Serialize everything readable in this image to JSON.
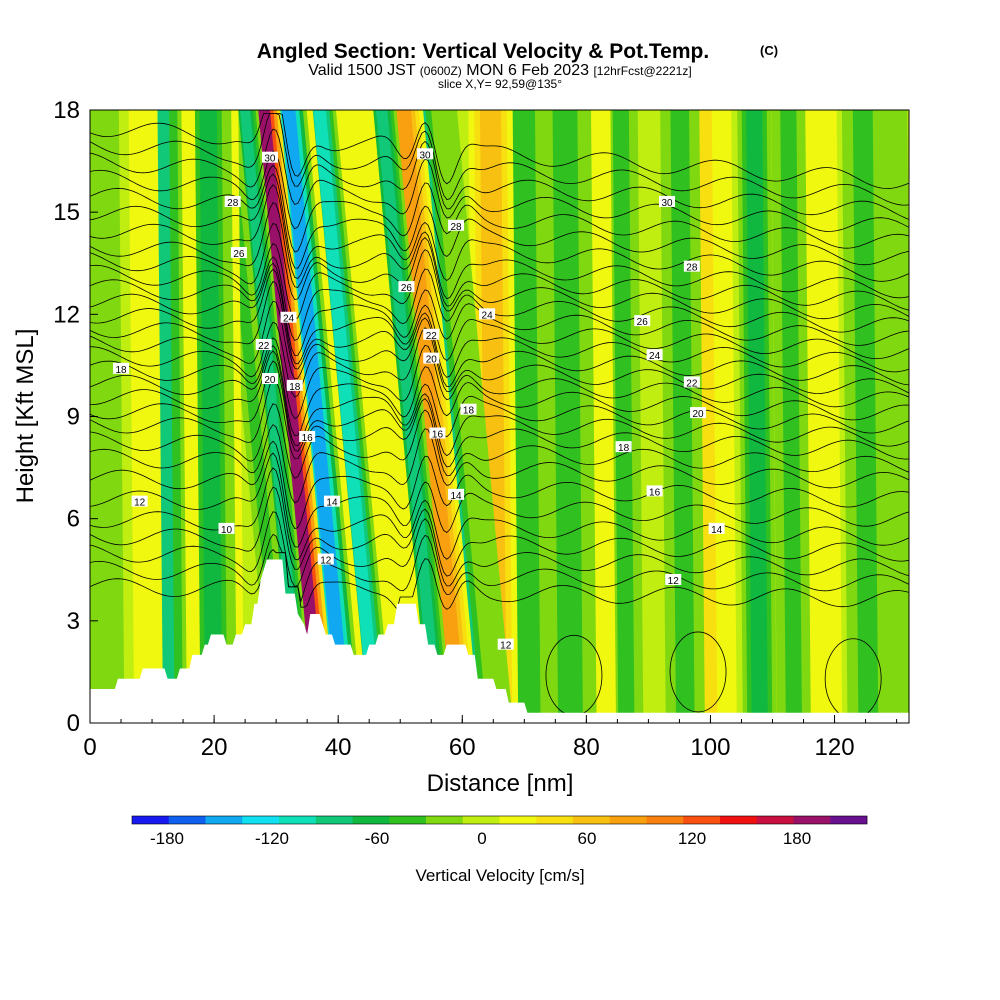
{
  "chart_data": {
    "type": "heatmap",
    "title": "Angled Section: Vertical Velocity & Pot.Temp.",
    "title_tag": "(C)",
    "subtitle_main_a": "Valid 1500 JST",
    "subtitle_tz": "(0600Z)",
    "subtitle_main_b": "MON 6 Feb 2023",
    "subtitle_fcst": "[12hrFcst@2221z]",
    "subtitle_slice": "slice X,Y= 92,59@135°",
    "xlabel": "Distance [nm]",
    "ylabel": "Height [Kft MSL]",
    "xlim": [
      0,
      132
    ],
    "ylim": [
      0,
      18
    ],
    "x_ticks": [
      "0",
      "20",
      "40",
      "60",
      "80",
      "100",
      "120"
    ],
    "y_ticks": [
      "0",
      "3",
      "6",
      "9",
      "12",
      "15",
      "18"
    ],
    "colorbar": {
      "label": "Vertical Velocity [cm/s]",
      "tick_labels": [
        "-180",
        "-120",
        "-60",
        "0",
        "60",
        "120",
        "180"
      ],
      "range": [
        -200,
        220
      ],
      "colors": [
        "#1818f0",
        "#1060f0",
        "#10a8f0",
        "#10e0f0",
        "#10e0b8",
        "#10c878",
        "#10b840",
        "#30c020",
        "#80d810",
        "#c0ee10",
        "#f0f810",
        "#f8e010",
        "#f8c010",
        "#f8a010",
        "#f88010",
        "#f85010",
        "#f01010",
        "#c81040",
        "#981068",
        "#681090"
      ]
    },
    "velocity_features": [
      {
        "x": 2,
        "w": 2,
        "v": -25
      },
      {
        "x": 9,
        "w": 1.5,
        "v": 25
      },
      {
        "x": 12,
        "w": 1.2,
        "v": -75
      },
      {
        "x": 15.5,
        "w": 1.2,
        "v": 25
      },
      {
        "x": 19.5,
        "w": 1.4,
        "v": -60
      },
      {
        "x": 22.5,
        "w": 1.2,
        "v": 20
      },
      {
        "x": 26.5,
        "w": 0.9,
        "v": -45
      },
      {
        "x": 29.5,
        "w": 0.8,
        "v": -95
      },
      {
        "x": 32.5,
        "w": 1.0,
        "v": 185
      },
      {
        "x": 36.5,
        "w": 1.1,
        "v": -140
      },
      {
        "x": 38.5,
        "w": 0.9,
        "v": 30
      },
      {
        "x": 41.5,
        "w": 1.0,
        "v": -115
      },
      {
        "x": 47.0,
        "w": 1.5,
        "v": 30
      },
      {
        "x": 51.5,
        "w": 0.9,
        "v": -80
      },
      {
        "x": 55.0,
        "w": 1.2,
        "v": 75
      },
      {
        "x": 57.8,
        "w": 0.8,
        "v": -75
      },
      {
        "x": 60.5,
        "w": 1.5,
        "v": -30
      },
      {
        "x": 65.0,
        "w": 1.7,
        "v": 55
      },
      {
        "x": 70.0,
        "w": 1.4,
        "v": -50
      },
      {
        "x": 77.0,
        "w": 2.0,
        "v": -40
      },
      {
        "x": 82.0,
        "w": 1.5,
        "v": 20
      },
      {
        "x": 86.0,
        "w": 1.3,
        "v": -45
      },
      {
        "x": 95.5,
        "w": 1.5,
        "v": -45
      },
      {
        "x": 98.5,
        "w": 1.4,
        "v": 45
      },
      {
        "x": 102.0,
        "w": 1.8,
        "v": 15
      },
      {
        "x": 107.5,
        "w": 1.3,
        "v": -55
      },
      {
        "x": 113.0,
        "w": 1.3,
        "v": -45
      },
      {
        "x": 118.0,
        "w": 1.8,
        "v": 20
      },
      {
        "x": 125.0,
        "w": 1.6,
        "v": -35
      },
      {
        "x": 130.0,
        "w": 1.4,
        "v": -25
      }
    ],
    "terrain": [
      [
        0,
        1.0
      ],
      [
        4,
        1.0
      ],
      [
        4.5,
        1.3
      ],
      [
        8,
        1.3
      ],
      [
        8.5,
        1.6
      ],
      [
        12,
        1.6
      ],
      [
        12.5,
        1.3
      ],
      [
        14,
        1.3
      ],
      [
        14.5,
        1.6
      ],
      [
        16,
        1.6
      ],
      [
        16.5,
        2.0
      ],
      [
        18,
        2.0
      ],
      [
        18.5,
        2.3
      ],
      [
        19,
        2.3
      ],
      [
        19.5,
        2.6
      ],
      [
        21.5,
        2.6
      ],
      [
        22,
        2.3
      ],
      [
        23,
        2.3
      ],
      [
        23.5,
        2.6
      ],
      [
        24.5,
        2.6
      ],
      [
        25,
        2.9
      ],
      [
        26,
        2.9
      ],
      [
        26.5,
        3.5
      ],
      [
        27,
        3.5
      ],
      [
        27.5,
        4.2
      ],
      [
        28.5,
        4.8
      ],
      [
        31,
        4.8
      ],
      [
        31.5,
        3.8
      ],
      [
        33,
        3.8
      ],
      [
        33.5,
        3.2
      ],
      [
        34.5,
        2.9
      ],
      [
        35,
        2.6
      ],
      [
        35.5,
        3.2
      ],
      [
        37,
        3.2
      ],
      [
        37.5,
        2.9
      ],
      [
        38,
        2.6
      ],
      [
        39,
        2.6
      ],
      [
        39.5,
        2.3
      ],
      [
        42,
        2.3
      ],
      [
        42.5,
        2.0
      ],
      [
        44.5,
        2.0
      ],
      [
        45,
        2.3
      ],
      [
        46,
        2.3
      ],
      [
        46.5,
        2.6
      ],
      [
        47.5,
        2.6
      ],
      [
        48,
        2.9
      ],
      [
        49,
        2.9
      ],
      [
        49.5,
        3.5
      ],
      [
        52.5,
        3.5
      ],
      [
        53,
        2.9
      ],
      [
        54,
        2.9
      ],
      [
        54.5,
        2.3
      ],
      [
        55.5,
        2.3
      ],
      [
        56,
        2.0
      ],
      [
        57,
        2.0
      ],
      [
        57.5,
        2.3
      ],
      [
        60.5,
        2.3
      ],
      [
        61,
        2.0
      ],
      [
        62,
        2.0
      ],
      [
        62.5,
        1.3
      ],
      [
        65,
        1.3
      ],
      [
        65.5,
        1.0
      ],
      [
        67,
        1.0
      ],
      [
        67.5,
        0.6
      ],
      [
        70,
        0.6
      ],
      [
        70.5,
        0.3
      ],
      [
        132,
        0.3
      ]
    ],
    "isentropes": {
      "levels": [
        4,
        4.5,
        5,
        5.5,
        6,
        6.6,
        7.2,
        7.8,
        8.3,
        8.8,
        9.2,
        9.6,
        10.0,
        10.4,
        10.8,
        11.2,
        11.6,
        12.0,
        12.4,
        12.8,
        13.2,
        13.6,
        14.0,
        14.5,
        15.0,
        15.5,
        16.0,
        16.5,
        17.0,
        17.5
      ],
      "labels": [
        {
          "text": "30",
          "x": 29,
          "y": 16.6
        },
        {
          "text": "30",
          "x": 54,
          "y": 16.7
        },
        {
          "text": "30",
          "x": 93,
          "y": 15.3
        },
        {
          "text": "28",
          "x": 23,
          "y": 15.3
        },
        {
          "text": "28",
          "x": 59,
          "y": 14.6
        },
        {
          "text": "28",
          "x": 97,
          "y": 13.4
        },
        {
          "text": "26",
          "x": 24,
          "y": 13.8
        },
        {
          "text": "26",
          "x": 51,
          "y": 12.8
        },
        {
          "text": "26",
          "x": 89,
          "y": 11.8
        },
        {
          "text": "24",
          "x": 32,
          "y": 11.9
        },
        {
          "text": "24",
          "x": 64,
          "y": 12.0
        },
        {
          "text": "24",
          "x": 91,
          "y": 10.8
        },
        {
          "text": "22",
          "x": 28,
          "y": 11.1
        },
        {
          "text": "22",
          "x": 55,
          "y": 11.4
        },
        {
          "text": "22",
          "x": 97,
          "y": 10.0
        },
        {
          "text": "20",
          "x": 29,
          "y": 10.1
        },
        {
          "text": "20",
          "x": 55,
          "y": 10.7
        },
        {
          "text": "20",
          "x": 98,
          "y": 9.1
        },
        {
          "text": "18",
          "x": 5,
          "y": 10.4
        },
        {
          "text": "18",
          "x": 33,
          "y": 9.9
        },
        {
          "text": "18",
          "x": 61,
          "y": 9.2
        },
        {
          "text": "18",
          "x": 86,
          "y": 8.1
        },
        {
          "text": "16",
          "x": 35,
          "y": 8.4
        },
        {
          "text": "16",
          "x": 56,
          "y": 8.5
        },
        {
          "text": "16",
          "x": 91,
          "y": 6.8
        },
        {
          "text": "14",
          "x": 39,
          "y": 6.5
        },
        {
          "text": "14",
          "x": 59,
          "y": 6.7
        },
        {
          "text": "14",
          "x": 101,
          "y": 5.7
        },
        {
          "text": "12",
          "x": 8,
          "y": 6.5
        },
        {
          "text": "12",
          "x": 38,
          "y": 4.8
        },
        {
          "text": "12",
          "x": 67,
          "y": 2.3
        },
        {
          "text": "12",
          "x": 94,
          "y": 4.2
        },
        {
          "text": "10",
          "x": 22,
          "y": 5.7
        }
      ]
    },
    "grid": false,
    "legend": "bottom colorbar"
  }
}
